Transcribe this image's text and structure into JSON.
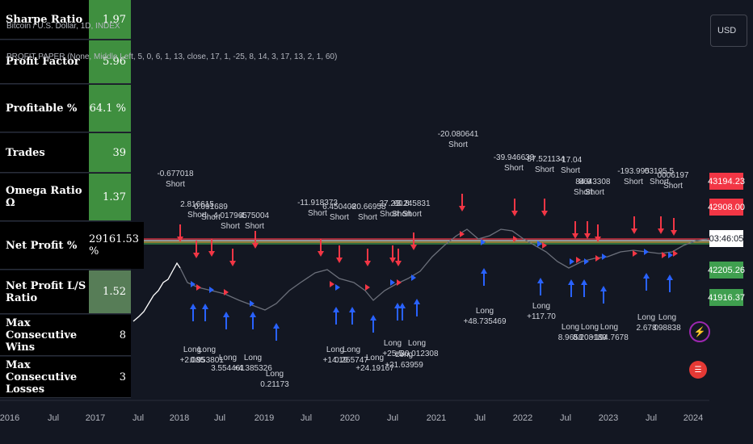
{
  "symbol_line": "Bitcoin / U.S. Dollar, 1D, INDEX",
  "indicator_line": "PROFIT PAPER (None, Middle Left, 5, 0, 6, 1, 13, close, 17, 1, -25, 8, 14, 3, 17, 13, 2, 1, 60)",
  "currency": "USD",
  "metrics": [
    {
      "label": "Sharpe Ratio",
      "value": "1.97",
      "color": "#3f8f3f"
    },
    {
      "label": "Profit Factor",
      "value": "5.96",
      "color": "#3f8f3f"
    },
    {
      "label": "Profitable %",
      "value": "64.1 %",
      "color": "#3f8f3f"
    },
    {
      "label": "Trades",
      "value": "39",
      "color": "#3f8f3f"
    },
    {
      "label": "Omega Ratio Ω",
      "value": "1.37",
      "color": "#3f8f3f"
    },
    {
      "label": "Net Profit %",
      "value": "29161.53 %",
      "color": "#000000"
    },
    {
      "label": "Net Profit L/S Ratio",
      "value": "1.52",
      "color": "#577d57"
    },
    {
      "label": "Max Consecutive Wins",
      "value": "8",
      "color": "#000000"
    },
    {
      "label": "Max Consecutive Losses",
      "value": "3",
      "color": "#000000"
    }
  ],
  "price_tags": [
    {
      "value": "43194.23",
      "color": "#f23645"
    },
    {
      "value": "42908.00",
      "color": "#f23645"
    },
    {
      "value": "03:46:05",
      "color": "#ffffff"
    },
    {
      "value": "42205.26",
      "color": "#3f9f4f"
    },
    {
      "value": "41916.37",
      "color": "#3f9f4f"
    }
  ],
  "icons": [
    "lightning-icon",
    "us-flag-icon"
  ],
  "chart_data": {
    "type": "line",
    "xaxis_labels": [
      "2016",
      "Jul",
      "2017",
      "Jul",
      "2018",
      "Jul",
      "2019",
      "Jul",
      "2020",
      "Jul",
      "2021",
      "Jul",
      "2022",
      "Jul",
      "2023",
      "Jul",
      "2024"
    ],
    "short_signals": [
      {
        "labels": [
          "-0.677018",
          "Short"
        ]
      },
      {
        "labels": [
          "2.816615",
          "Short"
        ]
      },
      {
        "labels": [
          "0.091689",
          "Short"
        ]
      },
      {
        "labels": [
          "4.017965",
          "Short"
        ]
      },
      {
        "labels": [
          "4.75004",
          "Short"
        ]
      },
      {
        "labels": [
          "-11.918373",
          "Short"
        ]
      },
      {
        "labels": [
          "6.450408",
          "Short"
        ]
      },
      {
        "labels": [
          "-20.66958",
          "Short"
        ]
      },
      {
        "labels": [
          "27.21",
          "Short"
        ]
      },
      {
        "labels": [
          "60.8",
          "Short"
        ]
      },
      {
        "labels": [
          "-3.245831",
          "Short"
        ]
      },
      {
        "labels": [
          "-20.080641",
          "Short"
        ]
      },
      {
        "labels": [
          "-39.946639",
          "Short"
        ]
      },
      {
        "labels": [
          "-57.521134",
          "Short"
        ]
      },
      {
        "labels": [
          "-17.04",
          "Short"
        ]
      },
      {
        "labels": [
          "84.9",
          "Short"
        ]
      },
      {
        "labels": [
          "8643308",
          "Short"
        ]
      },
      {
        "labels": [
          "-193.995",
          "Short"
        ]
      },
      {
        "labels": [
          "03195.5",
          "Short"
        ]
      },
      {
        "labels": [
          "0006197",
          "Short"
        ]
      }
    ],
    "long_signals": [
      {
        "labels": [
          "Long",
          "+2.085"
        ]
      },
      {
        "labels": [
          "Long",
          "0.953801"
        ]
      },
      {
        "labels": [
          "Long",
          "3.554461"
        ]
      },
      {
        "labels": [
          "Long",
          "+4.385326"
        ]
      },
      {
        "labels": [
          "Long",
          "0.21173"
        ]
      },
      {
        "labels": [
          "Long",
          "+14.19"
        ]
      },
      {
        "labels": [
          "Long",
          "0.255747"
        ]
      },
      {
        "labels": [
          "Long",
          "+24.19167"
        ]
      },
      {
        "labels": [
          "Long",
          "+25.5"
        ]
      },
      {
        "labels": [
          "Long",
          "+21.63959"
        ]
      },
      {
        "labels": [
          "Long",
          "+30.012308"
        ]
      },
      {
        "labels": [
          "Long",
          "+48.735469"
        ]
      },
      {
        "labels": [
          "Long",
          "+117.70"
        ]
      },
      {
        "labels": [
          "Long",
          "8.9658"
        ]
      },
      {
        "labels": [
          "Long",
          "8.208189"
        ]
      },
      {
        "labels": [
          "Long",
          "+194.7678"
        ]
      },
      {
        "labels": [
          "Long",
          "2.678"
        ]
      },
      {
        "labels": [
          "Long",
          "098838"
        ]
      }
    ],
    "grid": false
  }
}
